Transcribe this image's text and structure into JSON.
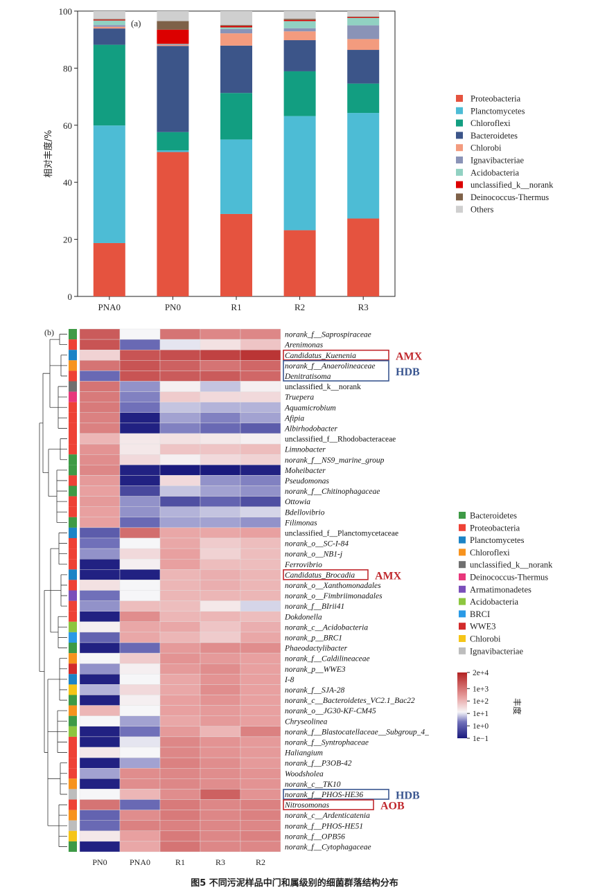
{
  "caption": "图5  不同污泥样品中门和属级别的细菌群落结构分布",
  "colors": {
    "Proteobacteria": "#E5533F",
    "Planctomycetes": "#4DBCD5",
    "Chloroflexi": "#129E81",
    "Bacteroidetes": "#3C5589",
    "Chlorobi": "#F39B7E",
    "Ignavibacteriae": "#8A93B7",
    "Acidobacteria": "#91D1C2",
    "unclassified_k__norank": "#DC0000",
    "Deinococcus-Thermus": "#7E6148",
    "Others": "#CFCFCF"
  },
  "chart_data": [
    {
      "type": "bar",
      "stacked": true,
      "panel_label": "(a)",
      "ylabel": "相对丰度/%",
      "ylim": [
        0,
        100
      ],
      "yticks": [
        "0",
        "20",
        "40",
        "60",
        "80",
        "100"
      ],
      "categories": [
        "PNA0",
        "PN0",
        "R1",
        "R2",
        "R3"
      ],
      "series": [
        {
          "name": "Proteobacteria",
          "values": [
            18.7,
            50.6,
            28.9,
            23.2,
            27.3
          ]
        },
        {
          "name": "Planctomycetes",
          "values": [
            41.2,
            0.6,
            26.1,
            40.0,
            37.0
          ]
        },
        {
          "name": "Chloroflexi",
          "values": [
            28.3,
            6.4,
            16.3,
            15.7,
            10.3
          ]
        },
        {
          "name": "Bacteroidetes",
          "values": [
            5.7,
            30.2,
            16.6,
            10.9,
            11.8
          ]
        },
        {
          "name": "Chlorobi",
          "values": [
            0.6,
            0.3,
            4.3,
            3.1,
            3.8
          ]
        },
        {
          "name": "Ignavibacteriae",
          "values": [
            0.6,
            0.2,
            1.5,
            1.1,
            4.8
          ]
        },
        {
          "name": "Acidobacteria",
          "values": [
            1.6,
            0.2,
            0.6,
            2.5,
            2.6
          ]
        },
        {
          "name": "unclassified_k__norank",
          "values": [
            0.3,
            5.0,
            0.5,
            0.4,
            0.3
          ]
        },
        {
          "name": "Deinococcus-Thermus",
          "values": [
            0.2,
            3.0,
            0.3,
            0.4,
            0.2
          ]
        },
        {
          "name": "Others",
          "values": [
            2.8,
            3.5,
            4.9,
            2.7,
            1.9
          ]
        }
      ]
    },
    {
      "type": "heatmap",
      "panel_label": "(b)",
      "columns": [
        "PN0",
        "PNA0",
        "R1",
        "R3",
        "R2"
      ],
      "value_scale": "log10",
      "colorbar_title": "丰度",
      "colorbar_ticks": [
        "2e+4",
        "1e+3",
        "1e+2",
        "1e+1",
        "1e+0",
        "1e−1"
      ],
      "colorbar_range": [
        -1,
        4.3
      ],
      "phylum_legend": [
        {
          "name": "Bacteroidetes",
          "color": "#3E9A46"
        },
        {
          "name": "Proteobacteria",
          "color": "#EE4236"
        },
        {
          "name": "Planctomycetes",
          "color": "#1C84C6"
        },
        {
          "name": "Chloroflexi",
          "color": "#F7931E"
        },
        {
          "name": "unclassified_k__norank",
          "color": "#707070"
        },
        {
          "name": "Deinococcus-Thermus",
          "color": "#E8377B"
        },
        {
          "name": "Armatimonadetes",
          "color": "#7A4FBA"
        },
        {
          "name": "Acidobacteria",
          "color": "#8DC63F"
        },
        {
          "name": "BRCI",
          "color": "#2A9AE6"
        },
        {
          "name": "WWE3",
          "color": "#D22B2B"
        },
        {
          "name": "Chlorobi",
          "color": "#F5C518"
        },
        {
          "name": "Ignavibacteriae",
          "color": "#BDBDBD"
        }
      ],
      "rows": [
        {
          "name": "norank_f__Saprospiraceae",
          "phylum": "Bacteroidetes",
          "values": [
            3.4,
            1.1,
            3.0,
            2.7,
            2.7
          ]
        },
        {
          "name": "Arenimonas",
          "phylum": "Proteobacteria",
          "values": [
            3.5,
            0.2,
            1.0,
            1.4,
            1.8
          ]
        },
        {
          "name": "Candidatus_Kuenenia",
          "phylum": "Planctomycetes",
          "values": [
            1.6,
            3.5,
            3.6,
            3.8,
            4.0
          ]
        },
        {
          "name": "norank_f__Anaerolineaceae",
          "phylum": "Chloroflexi",
          "values": [
            3.0,
            3.5,
            3.3,
            3.0,
            3.2
          ]
        },
        {
          "name": "Denitratisoma",
          "phylum": "Proteobacteria",
          "values": [
            0.2,
            3.5,
            3.4,
            3.4,
            3.2
          ]
        },
        {
          "name": "unclassified_k__norank",
          "phylum": "unclassified_k__norank",
          "values": [
            3.0,
            0.5,
            1.2,
            0.8,
            1.2
          ]
        },
        {
          "name": "Truepera",
          "phylum": "Deinococcus-Thermus",
          "values": [
            2.9,
            0.4,
            1.7,
            1.5,
            1.5
          ]
        },
        {
          "name": "Aquamicrobium",
          "phylum": "Proteobacteria",
          "values": [
            2.9,
            0.3,
            0.8,
            0.7,
            0.7
          ]
        },
        {
          "name": "Afipia",
          "phylum": "Proteobacteria",
          "values": [
            2.8,
            -0.9,
            0.6,
            0.4,
            0.6
          ]
        },
        {
          "name": "Albirhodobacter",
          "phylum": "Proteobacteria",
          "values": [
            2.8,
            -0.9,
            0.4,
            0.2,
            0.0
          ]
        },
        {
          "name": "unclassified_f__Rhodobacteraceae",
          "phylum": "Proteobacteria",
          "values": [
            2.0,
            1.3,
            1.4,
            1.3,
            1.2
          ]
        },
        {
          "name": "Limnobacter",
          "phylum": "Proteobacteria",
          "values": [
            2.5,
            1.3,
            1.8,
            1.8,
            1.9
          ]
        },
        {
          "name": "norank_f__NS9_marine_group",
          "phylum": "Bacteroidetes",
          "values": [
            2.6,
            1.5,
            1.2,
            1.5,
            1.6
          ]
        },
        {
          "name": "Moheibacter",
          "phylum": "Bacteroidetes",
          "values": [
            2.7,
            -0.9,
            -1.0,
            -1.0,
            -0.9
          ]
        },
        {
          "name": "Pseudomonas",
          "phylum": "Proteobacteria",
          "values": [
            2.4,
            -0.9,
            1.5,
            0.5,
            0.4
          ]
        },
        {
          "name": "norank_f__Chitinophagaceae",
          "phylum": "Bacteroidetes",
          "values": [
            2.3,
            -0.3,
            0.8,
            0.6,
            0.5
          ]
        },
        {
          "name": "Ottowia",
          "phylum": "Proteobacteria",
          "values": [
            2.4,
            0.5,
            -0.2,
            0.1,
            -0.2
          ]
        },
        {
          "name": "Bdellovibrio",
          "phylum": "Proteobacteria",
          "values": [
            2.3,
            0.5,
            0.7,
            0.8,
            0.9
          ]
        },
        {
          "name": "Filimonas",
          "phylum": "Bacteroidetes",
          "values": [
            2.3,
            0.2,
            0.6,
            0.6,
            0.5
          ]
        },
        {
          "name": "unclassified_f__Planctomycetaceae",
          "phylum": "Planctomycetes",
          "values": [
            0.0,
            3.1,
            2.2,
            2.2,
            2.3
          ]
        },
        {
          "name": "norank_o__SC-I-84",
          "phylum": "Proteobacteria",
          "values": [
            0.3,
            1.1,
            2.2,
            1.7,
            1.9
          ]
        },
        {
          "name": "norank_o__NB1-j",
          "phylum": "Proteobacteria",
          "values": [
            0.5,
            1.5,
            2.3,
            1.6,
            1.9
          ]
        },
        {
          "name": "Ferrovibrio",
          "phylum": "Proteobacteria",
          "values": [
            -0.9,
            1.2,
            2.3,
            1.9,
            1.9
          ]
        },
        {
          "name": "Candidatus_Brocadia",
          "phylum": "Planctomycetes",
          "values": [
            -0.9,
            -0.9,
            2.0,
            2.1,
            2.0
          ]
        },
        {
          "name": "norank_o__Xanthomonadales",
          "phylum": "Proteobacteria",
          "values": [
            1.4,
            1.1,
            2.0,
            2.1,
            2.0
          ]
        },
        {
          "name": "norank_o__Fimbriimonadales",
          "phylum": "Armatimonadetes",
          "values": [
            0.3,
            1.1,
            2.0,
            2.0,
            2.0
          ]
        },
        {
          "name": "norank_f__BIrii41",
          "phylum": "Proteobacteria",
          "values": [
            0.5,
            1.9,
            1.9,
            1.3,
            0.9
          ]
        },
        {
          "name": "Dokdonella",
          "phylum": "Proteobacteria",
          "values": [
            -0.9,
            2.6,
            2.0,
            2.0,
            1.9
          ]
        },
        {
          "name": "norank_c__Acidobacteria",
          "phylum": "Acidobacteria",
          "values": [
            1.2,
            2.2,
            2.2,
            1.8,
            2.1
          ]
        },
        {
          "name": "norank_p__BRC1",
          "phylum": "BRCI",
          "values": [
            0.1,
            2.2,
            2.0,
            1.7,
            2.2
          ]
        },
        {
          "name": "Phaeodactylibacter",
          "phylum": "Bacteroidetes",
          "values": [
            -0.9,
            0.2,
            2.4,
            2.6,
            2.6
          ]
        },
        {
          "name": "norank_f__Caldilineaceae",
          "phylum": "Chloroflexi",
          "values": [
            1.1,
            1.7,
            2.5,
            2.4,
            2.3
          ]
        },
        {
          "name": "norank_p__WWE3",
          "phylum": "WWE3",
          "values": [
            0.5,
            1.2,
            2.4,
            2.6,
            2.3
          ]
        },
        {
          "name": "I-8",
          "phylum": "Planctomycetes",
          "values": [
            -0.9,
            1.1,
            2.2,
            2.5,
            2.3
          ]
        },
        {
          "name": "norank_f__SJA-28",
          "phylum": "Chlorobi",
          "values": [
            0.7,
            1.5,
            2.2,
            2.6,
            2.3
          ]
        },
        {
          "name": "norank_c__Bacteroidetes_VC2.1_Bac22",
          "phylum": "Bacteroidetes",
          "values": [
            -0.9,
            1.2,
            2.3,
            2.5,
            2.3
          ]
        },
        {
          "name": "norank_o__JG30-KF-CM45",
          "phylum": "Chloroflexi",
          "values": [
            2.0,
            1.1,
            2.3,
            2.4,
            2.3
          ]
        },
        {
          "name": "Chryseolinea",
          "phylum": "Bacteroidetes",
          "values": [
            1.1,
            0.6,
            2.2,
            2.4,
            2.3
          ]
        },
        {
          "name": "norank_f__Blastocatellaceae__Subgroup_4_",
          "phylum": "Acidobacteria",
          "values": [
            -0.9,
            0.3,
            2.4,
            2.0,
            2.8
          ]
        },
        {
          "name": "norank_f__Syntrophaceae",
          "phylum": "Proteobacteria",
          "values": [
            -0.9,
            1.0,
            2.7,
            2.5,
            2.4
          ]
        },
        {
          "name": "Haliangium",
          "phylum": "Proteobacteria",
          "values": [
            1.3,
            1.1,
            2.7,
            2.5,
            2.4
          ]
        },
        {
          "name": "norank_f__P3OB-42",
          "phylum": "Proteobacteria",
          "values": [
            -0.9,
            0.6,
            2.8,
            2.6,
            2.4
          ]
        },
        {
          "name": "Woodsholea",
          "phylum": "Proteobacteria",
          "values": [
            0.6,
            2.6,
            2.7,
            2.6,
            2.5
          ]
        },
        {
          "name": "norank_c__TK10",
          "phylum": "Chloroflexi",
          "values": [
            -0.9,
            2.6,
            2.7,
            2.6,
            2.5
          ]
        },
        {
          "name": "norank_f__PHOS-HE36",
          "phylum": "Ignavibacteriae",
          "values": [
            1.1,
            2.0,
            2.6,
            3.3,
            2.5
          ]
        },
        {
          "name": "Nitrosomonas",
          "phylum": "Proteobacteria",
          "values": [
            3.0,
            0.2,
            2.9,
            2.7,
            2.8
          ]
        },
        {
          "name": "norank_c__Ardenticatenia",
          "phylum": "Chloroflexi",
          "values": [
            0.1,
            2.6,
            2.9,
            2.7,
            2.8
          ]
        },
        {
          "name": "norank_f__PHOS-HE51",
          "phylum": "Ignavibacteriae",
          "values": [
            0.2,
            2.8,
            2.8,
            2.7,
            2.7
          ]
        },
        {
          "name": "norank_f__OPB56",
          "phylum": "Chlorobi",
          "values": [
            1.3,
            2.3,
            2.9,
            2.7,
            2.8
          ]
        },
        {
          "name": "norank_f__Cytophagaceae",
          "phylum": "Bacteroidetes",
          "values": [
            -0.9,
            2.2,
            3.0,
            2.7,
            2.7
          ]
        }
      ],
      "annotations": [
        {
          "label": "AMX",
          "row": "Candidatus_Kuenenia",
          "color": "#C0282D",
          "rows_span": 1
        },
        {
          "label": "HDB",
          "row": "norank_f__Anaerolineaceae",
          "color": "#3A5690",
          "rows_span": 2
        },
        {
          "label": "AMX",
          "row": "Candidatus_Brocadia",
          "color": "#C0282D",
          "rows_span": 1
        },
        {
          "label": "HDB",
          "row": "norank_f__PHOS-HE36",
          "color": "#3A5690",
          "rows_span": 1
        },
        {
          "label": "AOB",
          "row": "Nitrosomonas",
          "color": "#C0282D",
          "rows_span": 1
        }
      ]
    }
  ]
}
